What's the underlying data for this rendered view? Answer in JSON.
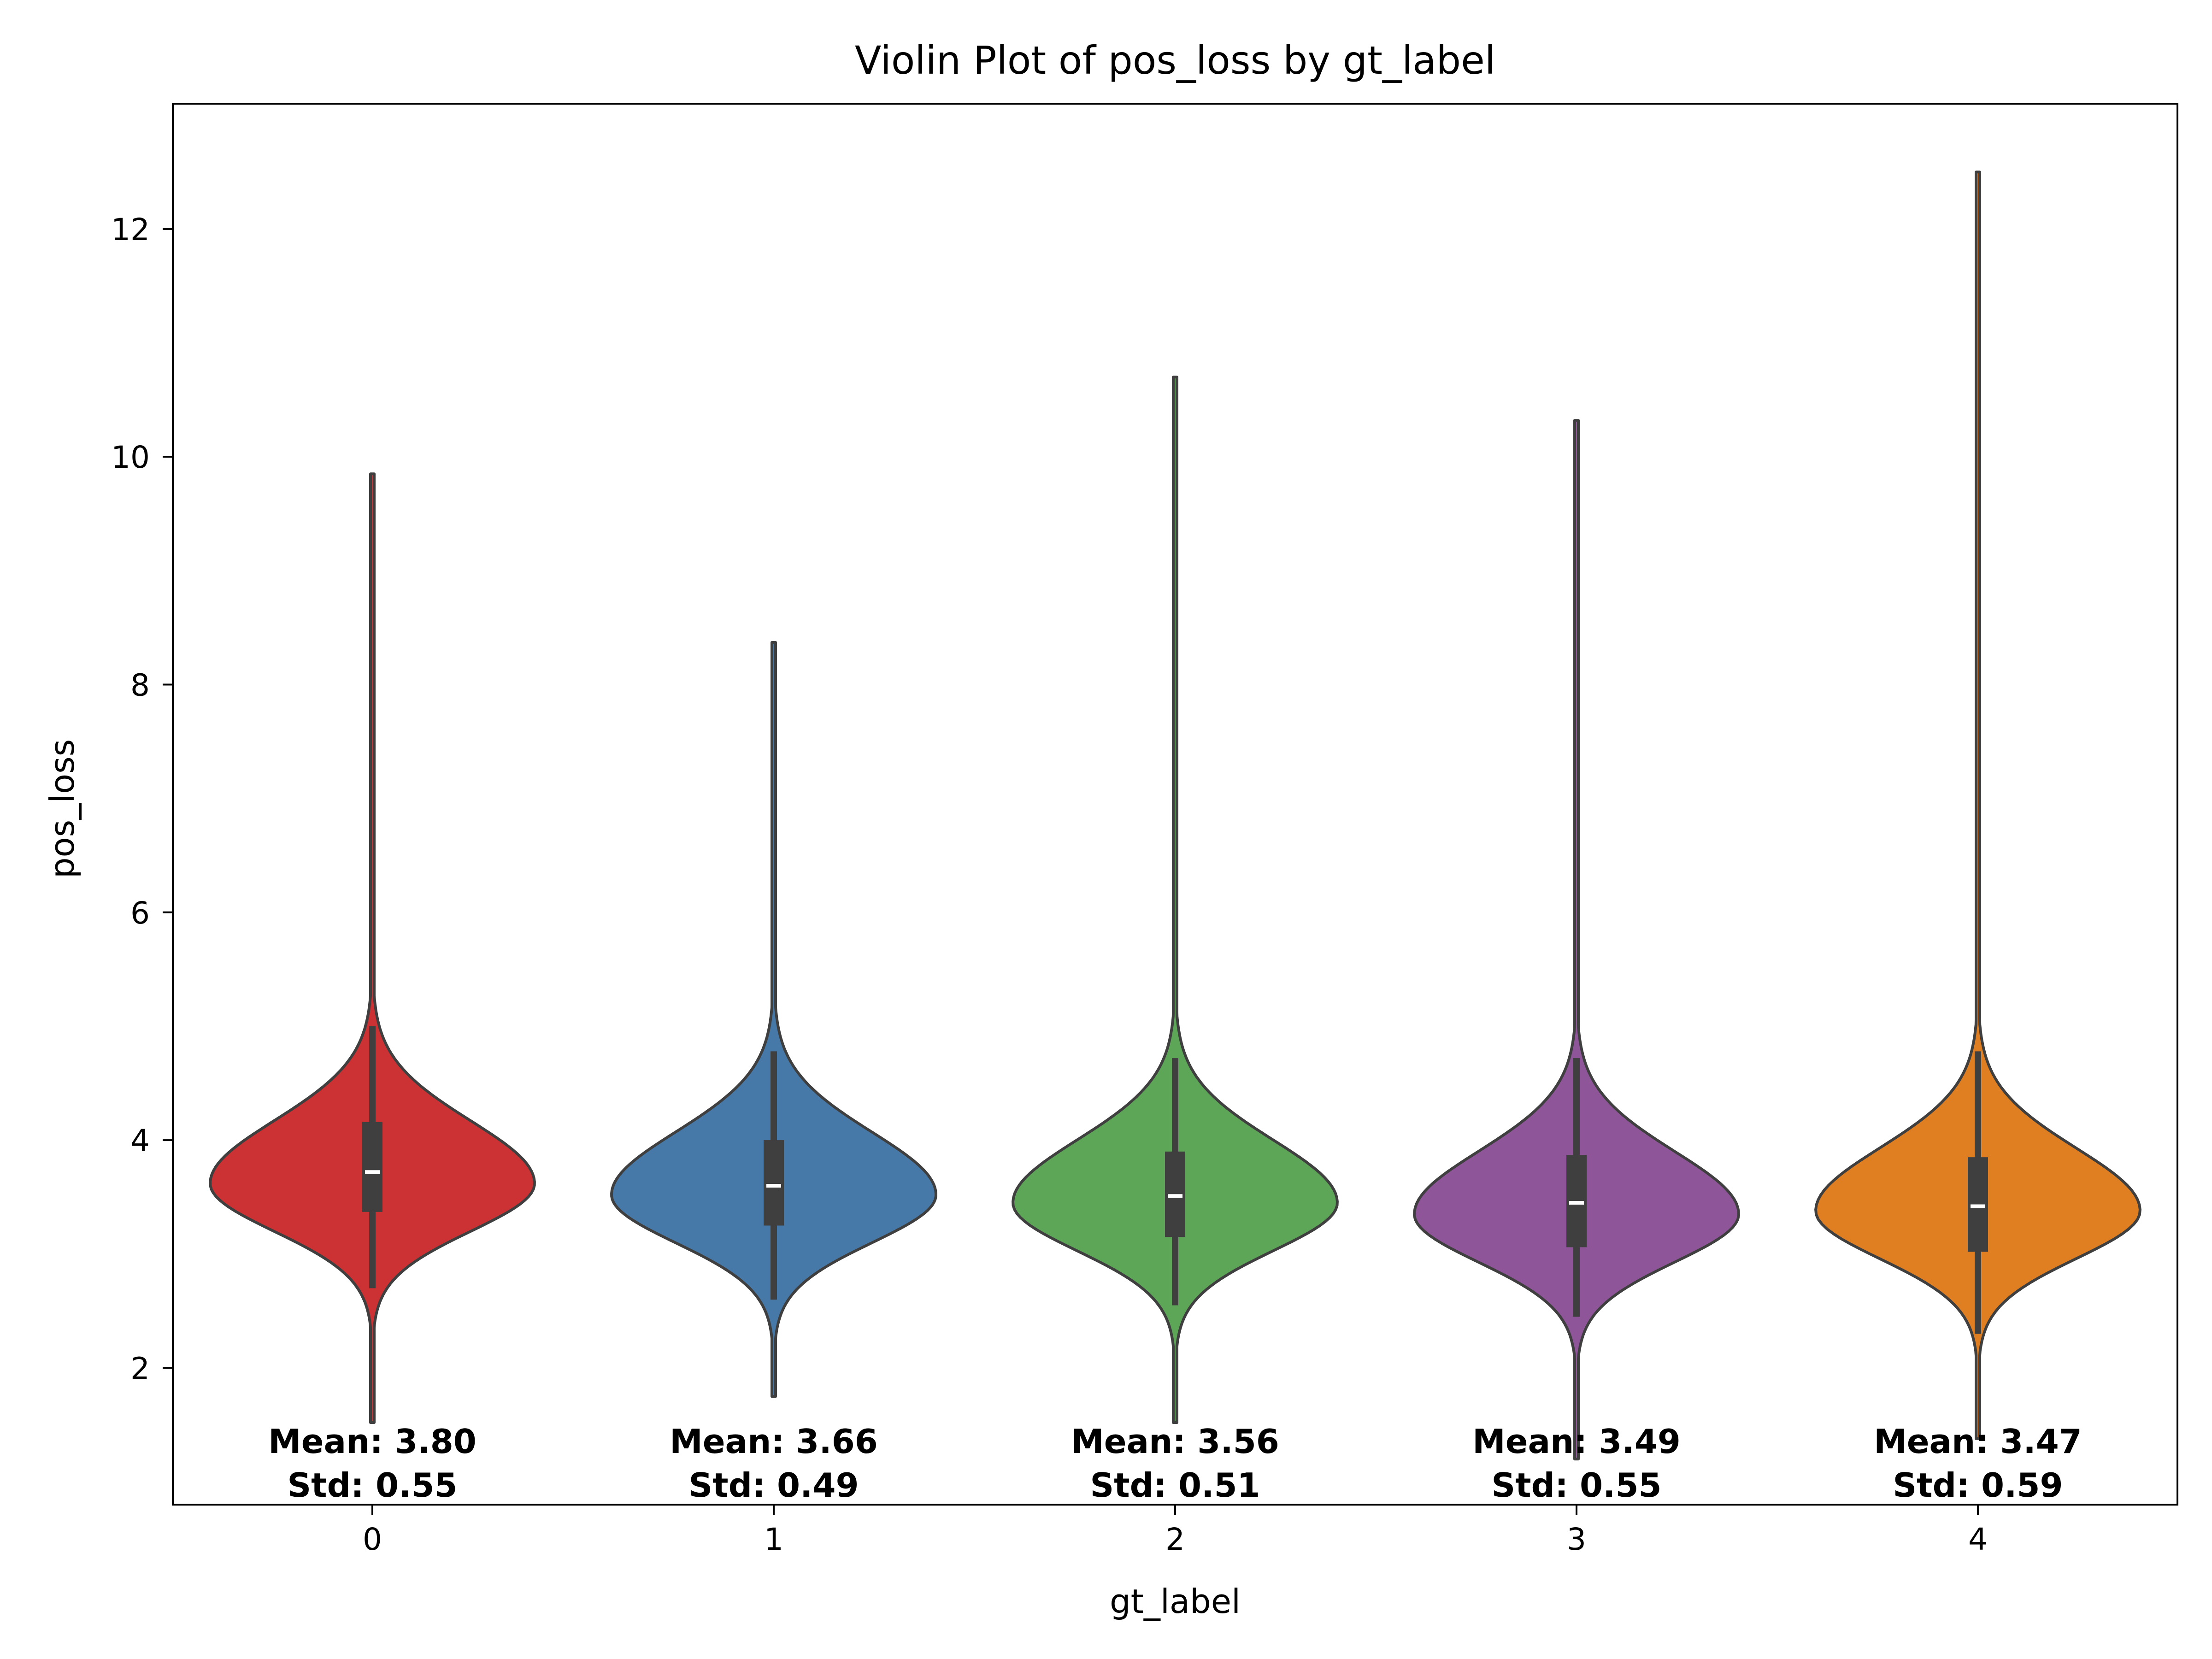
{
  "chart_data": {
    "type": "violin",
    "title": "Violin Plot of pos_loss by gt_label",
    "xlabel": "gt_label",
    "ylabel": "pos_loss",
    "ylim": [
      0.8,
      13.1
    ],
    "yticks": [
      "2",
      "4",
      "6",
      "8",
      "10",
      "12"
    ],
    "grid": false,
    "categories": [
      "0",
      "1",
      "2",
      "3",
      "4"
    ],
    "colors": [
      "#cc3233",
      "#4679a8",
      "#5da658",
      "#8e5599",
      "#e07e22"
    ],
    "violins": [
      {
        "category": "0",
        "min": 1.52,
        "max": 9.85,
        "q1": 3.37,
        "median": 3.72,
        "q3": 4.16,
        "whisker_low": 2.7,
        "whisker_high": 5.0,
        "mode": 3.62,
        "mean_label": "Mean: 3.80",
        "std_label": "Std: 0.55"
      },
      {
        "category": "1",
        "min": 1.75,
        "max": 8.37,
        "q1": 3.25,
        "median": 3.6,
        "q3": 4.0,
        "whisker_low": 2.6,
        "whisker_high": 4.78,
        "mode": 3.52,
        "mean_label": "Mean: 3.66",
        "std_label": "Std: 0.49"
      },
      {
        "category": "2",
        "min": 1.52,
        "max": 10.7,
        "q1": 3.15,
        "median": 3.51,
        "q3": 3.9,
        "whisker_low": 2.55,
        "whisker_high": 4.72,
        "mode": 3.45,
        "mean_label": "Mean: 3.56",
        "std_label": "Std: 0.51"
      },
      {
        "category": "3",
        "min": 1.2,
        "max": 10.32,
        "q1": 3.06,
        "median": 3.45,
        "q3": 3.87,
        "whisker_low": 2.45,
        "whisker_high": 4.72,
        "mode": 3.35,
        "mean_label": "Mean: 3.49",
        "std_label": "Std: 0.55"
      },
      {
        "category": "4",
        "min": 1.38,
        "max": 12.5,
        "q1": 3.02,
        "median": 3.42,
        "q3": 3.85,
        "whisker_low": 2.3,
        "whisker_high": 4.78,
        "mode": 3.38,
        "mean_label": "Mean: 3.47",
        "std_label": "Std: 0.59"
      }
    ]
  }
}
